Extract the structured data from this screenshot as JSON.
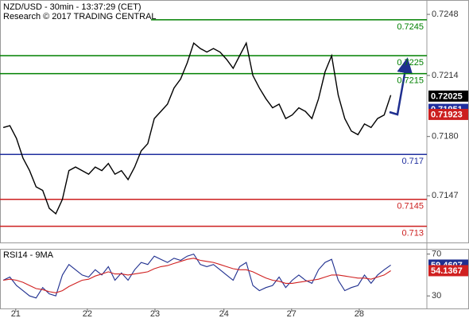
{
  "chart_data": [
    {
      "type": "line",
      "title": "NZD/USD - 30min - 13:37:29 (CET)",
      "subtitle": "Research © 2017 TRADING CENTRAL",
      "xlim": [
        0,
        65
      ],
      "ylim": [
        0.7121,
        0.7256
      ],
      "yticks": [
        0.7248,
        0.7214,
        {
          "value": 0.718,
          "label": "0.7180"
        },
        0.7147
      ],
      "series": [
        {
          "color": "#000000",
          "values": [
            0.7185,
            0.7186,
            0.7179,
            0.7168,
            0.7161,
            0.7152,
            0.715,
            0.714,
            0.7137,
            0.7145,
            0.7161,
            0.7163,
            0.7161,
            0.7159,
            0.7163,
            0.7161,
            0.7165,
            0.7159,
            0.7161,
            0.7156,
            0.7163,
            0.7172,
            0.7176,
            0.719,
            0.7194,
            0.7198,
            0.7207,
            0.7212,
            0.7221,
            0.7232,
            0.7229,
            0.7227,
            0.7229,
            0.7227,
            0.7223,
            0.7218,
            0.7225,
            0.7232,
            0.7214,
            0.7207,
            0.7201,
            0.7196,
            0.7198,
            0.719,
            0.7192,
            0.7196,
            0.7194,
            0.719,
            0.7201,
            0.7216,
            0.7225,
            0.7203,
            0.719,
            0.7183,
            0.7181,
            0.7187,
            0.7185,
            0.719,
            0.7192,
            0.7203
          ]
        }
      ],
      "levels": [
        {
          "value": 0.7245,
          "color": "#008000"
        },
        {
          "value": 0.7225,
          "color": "#008000"
        },
        {
          "value": 0.7215,
          "color": "#008000"
        },
        {
          "value": 0.717,
          "color": "#1f2f9f"
        },
        {
          "value": 0.7145,
          "color": "#cc1f1f"
        },
        {
          "value": 0.713,
          "color": "#cc1f1f"
        }
      ],
      "price_labels": [
        {
          "value": 0.72025,
          "color": "#000000"
        },
        {
          "value": 0.71951,
          "color": "#1f2f9f"
        },
        {
          "value": 0.71923,
          "color": "#cc1f1f"
        }
      ]
    },
    {
      "type": "line",
      "title": "RSI14 - 9MA",
      "xlim": [
        0,
        65
      ],
      "ylim": [
        18,
        75
      ],
      "yticks": [
        70,
        30
      ],
      "xticks": [
        {
          "value": 2.4,
          "label": "21"
        },
        {
          "value": 13.3,
          "label": "22"
        },
        {
          "value": 23.6,
          "label": "23"
        },
        {
          "value": 34.1,
          "label": "24"
        },
        {
          "value": 44.4,
          "label": "27"
        },
        {
          "value": 54.7,
          "label": "28"
        }
      ],
      "series": [
        {
          "color": "#1f2f8f",
          "values": [
            45,
            48,
            40,
            35,
            30,
            28,
            38,
            32,
            30,
            50,
            60,
            55,
            50,
            48,
            55,
            50,
            58,
            45,
            52,
            45,
            55,
            62,
            60,
            68,
            65,
            62,
            66,
            64,
            68,
            70,
            60,
            58,
            60,
            55,
            50,
            45,
            58,
            62,
            40,
            35,
            38,
            40,
            48,
            38,
            45,
            50,
            45,
            42,
            55,
            62,
            65,
            45,
            35,
            38,
            40,
            50,
            42,
            50,
            55,
            59.4607
          ]
        },
        {
          "color": "#d02020",
          "values": [
            45,
            46,
            45,
            43,
            40,
            37,
            36,
            34,
            33,
            35,
            39,
            42,
            45,
            46,
            49,
            51,
            53,
            51,
            51,
            50,
            51,
            52,
            53,
            56,
            58,
            59,
            61,
            63,
            65,
            66,
            64,
            63,
            62,
            60,
            58,
            56,
            55,
            55,
            53,
            50,
            47,
            45,
            44,
            42,
            42,
            43,
            44,
            45,
            46,
            48,
            50,
            50,
            49,
            48,
            47,
            47,
            46,
            48,
            50,
            54.1367
          ]
        }
      ],
      "price_labels": [
        {
          "value": 59.4607,
          "color": "#1f2f8f"
        },
        {
          "value": 54.1367,
          "color": "#d02020"
        }
      ]
    }
  ]
}
